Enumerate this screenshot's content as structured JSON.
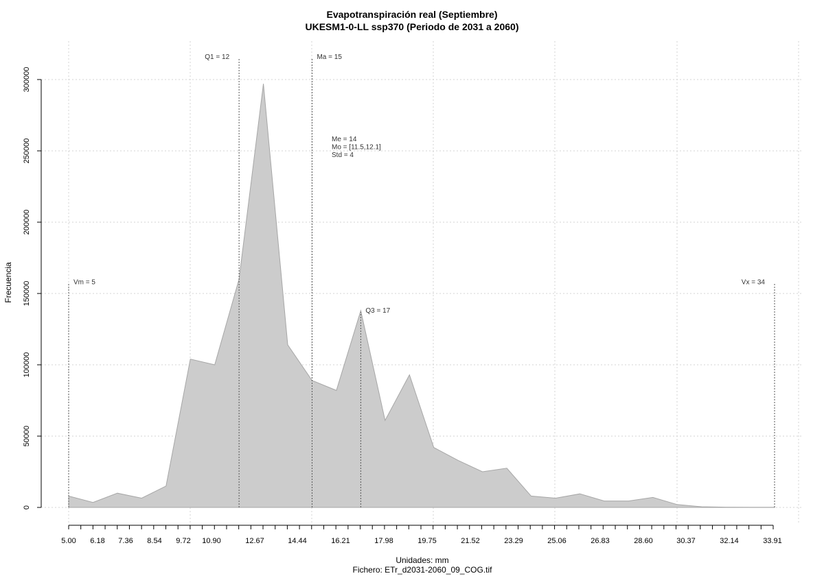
{
  "chart_data": {
    "type": "area",
    "title": "Evapotranspiración real (Septiembre)",
    "subtitle": "UKESM1-0-LL ssp370 (Periodo de 2031 a 2060)",
    "xlabel": "Unidades: mm",
    "footer": "Fichero: ETr_d2031-2060_09_COG.tif",
    "ylabel": "Frecuencia",
    "xlim": [
      5.0,
      34.0
    ],
    "ylim": [
      0,
      300000
    ],
    "grid": true,
    "x_ticks": [
      "5.00",
      "6.18",
      "7.36",
      "8.54",
      "9.72",
      "10.90",
      "12.67",
      "14.44",
      "16.21",
      "17.98",
      "19.75",
      "21.52",
      "23.29",
      "25.06",
      "26.83",
      "28.60",
      "30.37",
      "32.14",
      "33.91"
    ],
    "y_ticks": [
      "0",
      "50000",
      "100000",
      "150000",
      "200000",
      "250000",
      "300000"
    ],
    "x": [
      5.0,
      6.0,
      7.0,
      8.0,
      9.0,
      10.0,
      11.0,
      12.0,
      13.0,
      14.0,
      15.0,
      16.0,
      17.0,
      18.0,
      19.0,
      20.0,
      21.0,
      22.0,
      23.0,
      24.0,
      25.0,
      26.0,
      27.0,
      28.0,
      29.0,
      30.0,
      31.0,
      32.0,
      33.0,
      34.0
    ],
    "values": [
      8000,
      3500,
      10000,
      6500,
      15000,
      104000,
      100000,
      160000,
      297000,
      114000,
      89000,
      82000,
      138000,
      61000,
      93000,
      42000,
      33000,
      25000,
      27500,
      8000,
      6500,
      9500,
      4500,
      4500,
      7000,
      2000,
      500,
      200,
      100,
      100
    ],
    "fill_color": "#cccccc",
    "line_color": "#a6a6a6",
    "annotations": [
      {
        "label": "Vm = 5",
        "x": 5.0,
        "y": 157000,
        "anchor": "start"
      },
      {
        "label": "Q1 = 12",
        "x": 12.0,
        "y": 315000,
        "anchor": "end"
      },
      {
        "label": "Ma = 15",
        "x": 15.0,
        "y": 315000,
        "anchor": "start"
      },
      {
        "label": "Q3 = 17",
        "x": 17.0,
        "y": 137000,
        "anchor": "start"
      },
      {
        "label": "Vx = 34",
        "x": 34.0,
        "y": 157000,
        "anchor": "end"
      }
    ],
    "stats": [
      "Me = 14",
      "Mo = [11.5,12.1]",
      "Std = 4"
    ]
  }
}
